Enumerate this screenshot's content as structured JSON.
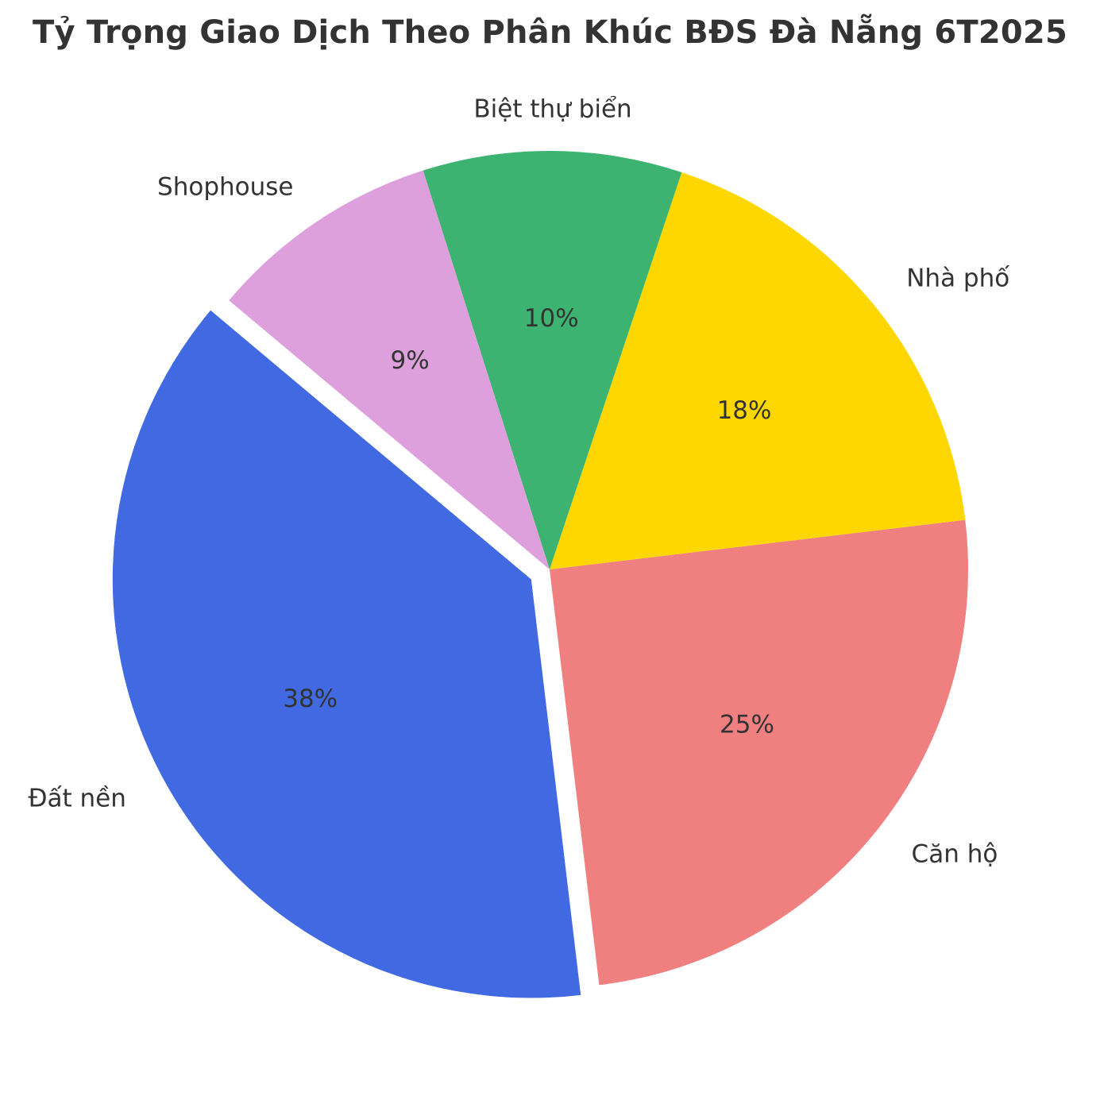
{
  "chart_data": {
    "type": "pie",
    "title": "Tỷ Trọng Giao Dịch Theo Phân Khúc BĐS Đà Nẵng 6T2025",
    "slices": [
      {
        "label": "Đất nền",
        "value": 38,
        "pct_label": "38%",
        "color": "#4169E1",
        "exploded": true
      },
      {
        "label": "Căn hộ",
        "value": 25,
        "pct_label": "25%",
        "color": "#F08080",
        "exploded": false
      },
      {
        "label": "Nhà phố",
        "value": 18,
        "pct_label": "18%",
        "color": "#FFD700",
        "exploded": false
      },
      {
        "label": "Biệt thự biển",
        "value": 10,
        "pct_label": "10%",
        "color": "#3CB371",
        "exploded": false
      },
      {
        "label": "Shophouse",
        "value": 9,
        "pct_label": "9%",
        "color": "#DDA0DD",
        "exploded": false
      }
    ],
    "start_angle_deg": 140,
    "direction": "counterclockwise",
    "legend": "none"
  }
}
